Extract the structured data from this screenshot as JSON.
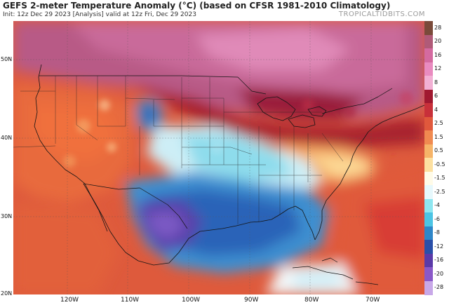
{
  "header": {
    "title": "GEFS 2-meter Temperature Anomaly (°C) (based on CFSR 1981-2010 Climatology)",
    "subtitle": "Init: 12z Dec 29 2023  [Analysis]  valid at 12z Fri, Dec 29 2023",
    "brand": "TROPICALTIDBITS.COM"
  },
  "colorbar": {
    "labels": [
      "28",
      "20",
      "16",
      "12",
      "8",
      "6",
      "4",
      "2.5",
      "1.5",
      "0.5",
      "-0.5",
      "-1.5",
      "-2.5",
      "-4",
      "-6",
      "-8",
      "-12",
      "-16",
      "-20",
      "-28"
    ],
    "colors": [
      "#7a4a3a",
      "#b05a78",
      "#d46aa0",
      "#e98bc0",
      "#f2b0d4",
      "#a01830",
      "#c8303a",
      "#e0583c",
      "#f08a50",
      "#f6b468",
      "#fde0a0",
      "#fffbe8",
      "#e6f8fc",
      "#8ee6f0",
      "#4cc4e4",
      "#2e86c8",
      "#2a4fa8",
      "#5a3aa8",
      "#8a58c8",
      "#c8a8e8"
    ]
  },
  "axes": {
    "lat_labels": [
      "50N",
      "40N",
      "30N",
      "20N"
    ],
    "lon_labels": [
      "120W",
      "110W",
      "100W",
      "90W",
      "80W",
      "70W"
    ]
  }
}
